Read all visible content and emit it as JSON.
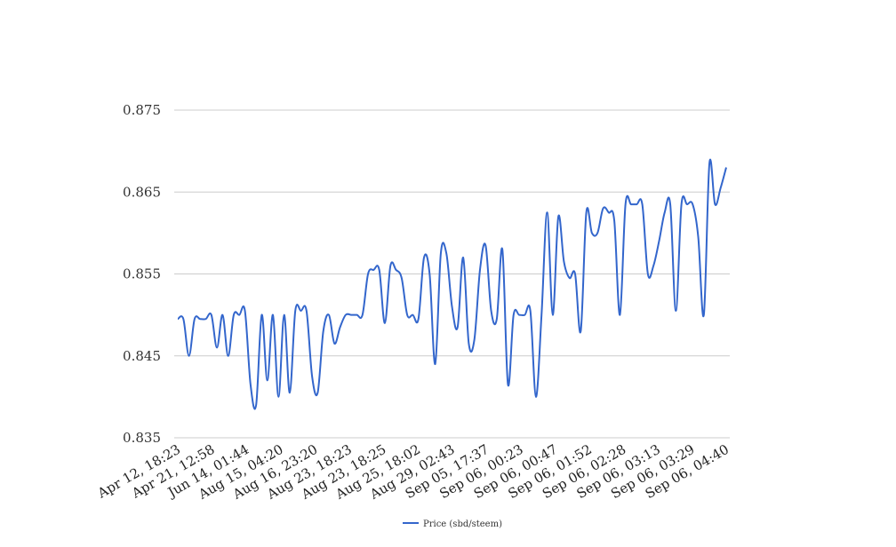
{
  "chart_data": {
    "type": "line",
    "title": "",
    "xlabel": "",
    "ylabel": "",
    "ylim": [
      0.835,
      0.875
    ],
    "yticks": [
      "0.875",
      "0.865",
      "0.855",
      "0.845",
      "0.835"
    ],
    "ytick_values": [
      0.875,
      0.865,
      0.855,
      0.845,
      0.835
    ],
    "xtick_labels": [
      "Apr 12, 18:23",
      "Apr 21, 12:58",
      "Jun 14, 01:44",
      "Aug 15, 04:20",
      "Aug 16, 23:20",
      "Aug 23, 18:23",
      "Aug 23, 18:25",
      "Aug 25, 18:02",
      "Aug 29, 02:43",
      "Sep 05, 17:37",
      "Sep 06, 00:23",
      "Sep 06, 00:47",
      "Sep 06, 01:52",
      "Sep 06, 02:28",
      "Sep 06, 03:13",
      "Sep 06, 03:29",
      "Sep 06, 04:40"
    ],
    "grid": true,
    "legend": "bottom",
    "color": "#3366cc",
    "series": [
      {
        "name": "Price (sbd/steem)",
        "values": [
          0.8495,
          0.8495,
          0.845,
          0.8495,
          0.8495,
          0.8495,
          0.85,
          0.846,
          0.85,
          0.845,
          0.85,
          0.85,
          0.8505,
          0.8415,
          0.839,
          0.85,
          0.842,
          0.85,
          0.84,
          0.85,
          0.8405,
          0.8505,
          0.8505,
          0.8505,
          0.8425,
          0.8405,
          0.848,
          0.85,
          0.8465,
          0.8485,
          0.85,
          0.85,
          0.85,
          0.85,
          0.855,
          0.8555,
          0.8555,
          0.849,
          0.856,
          0.8555,
          0.8545,
          0.85,
          0.85,
          0.8495,
          0.857,
          0.855,
          0.844,
          0.8575,
          0.8575,
          0.851,
          0.8485,
          0.857,
          0.8465,
          0.847,
          0.8555,
          0.8585,
          0.8505,
          0.8495,
          0.858,
          0.8415,
          0.85,
          0.85,
          0.85,
          0.8505,
          0.84,
          0.85,
          0.8625,
          0.85,
          0.862,
          0.8565,
          0.8545,
          0.855,
          0.848,
          0.8625,
          0.86,
          0.86,
          0.863,
          0.8625,
          0.8615,
          0.85,
          0.8635,
          0.8635,
          0.8635,
          0.8635,
          0.855,
          0.856,
          0.859,
          0.8625,
          0.8635,
          0.8505,
          0.8635,
          0.8635,
          0.8635,
          0.8595,
          0.85,
          0.8685,
          0.8635,
          0.8655,
          0.868
        ]
      }
    ]
  }
}
